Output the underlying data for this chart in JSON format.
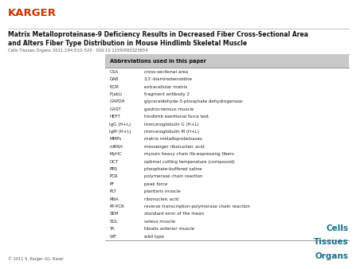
{
  "karger_color": "#CC3300",
  "karger_text": "KARGER",
  "title_line1": "Matrix Metalloproteinase-9 Deficiency Results in Decreased Fiber Cross-Sectional Area",
  "title_line2": "and Alters Fiber Type Distribution in Mouse Hindlimb Skeletal Muscle",
  "subtitle": "Cells Tissues Organs 2011;194:510–520 · DOI:10.1159/000323654",
  "table_header": "Abbreviations used in this paper",
  "abbreviations": [
    [
      "CSA",
      "cross-sectional area"
    ],
    [
      "DAB",
      "3,3′-diaminobenzidine"
    ],
    [
      "ECM",
      "extracellular matrix"
    ],
    [
      "F(ab)₂",
      "fragment antibody 2"
    ],
    [
      "GAPDH",
      "glyceraldehyde-3-phosphate dehydrogenase"
    ],
    [
      "GAST",
      "gastrocnemius muscle"
    ],
    [
      "HEFT",
      "hindlimb exertional force test"
    ],
    [
      "IgG (H+L)",
      "immunoglobulin G (H+L)"
    ],
    [
      "IgM (H+L)",
      "immunoglobulin M (H+L)"
    ],
    [
      "MMPs",
      "matrix metalloproteinases"
    ],
    [
      "mRNA",
      "messenger ribonucleic acid"
    ],
    [
      "MyHC",
      "myosin heavy chain IIb-expressing fibers"
    ],
    [
      "OCT",
      "optimal cutting temperature (compound)"
    ],
    [
      "PBS",
      "phosphate-buffered saline"
    ],
    [
      "PCR",
      "polymerase chain reaction"
    ],
    [
      "PF",
      "peak force"
    ],
    [
      "PLT",
      "plantaris muscle"
    ],
    [
      "RNA",
      "ribonucleic acid"
    ],
    [
      "RT-PCR",
      "reverse transcription-polymerase chain reaction"
    ],
    [
      "SEM",
      "standard error of the mean"
    ],
    [
      "SOL",
      "soleus muscle"
    ],
    [
      "TA",
      "tibialis anterior muscle"
    ],
    [
      "WT",
      "wild type"
    ]
  ],
  "footer_left": "© 2011 S. Karger AG, Basel",
  "journal_color": "#1a6e8c",
  "journal_name": [
    "Cells",
    "Tissues",
    "Organs"
  ],
  "bg_color": "#ffffff",
  "table_header_bg": "#c8c8c8",
  "table_border_color": "#999999"
}
